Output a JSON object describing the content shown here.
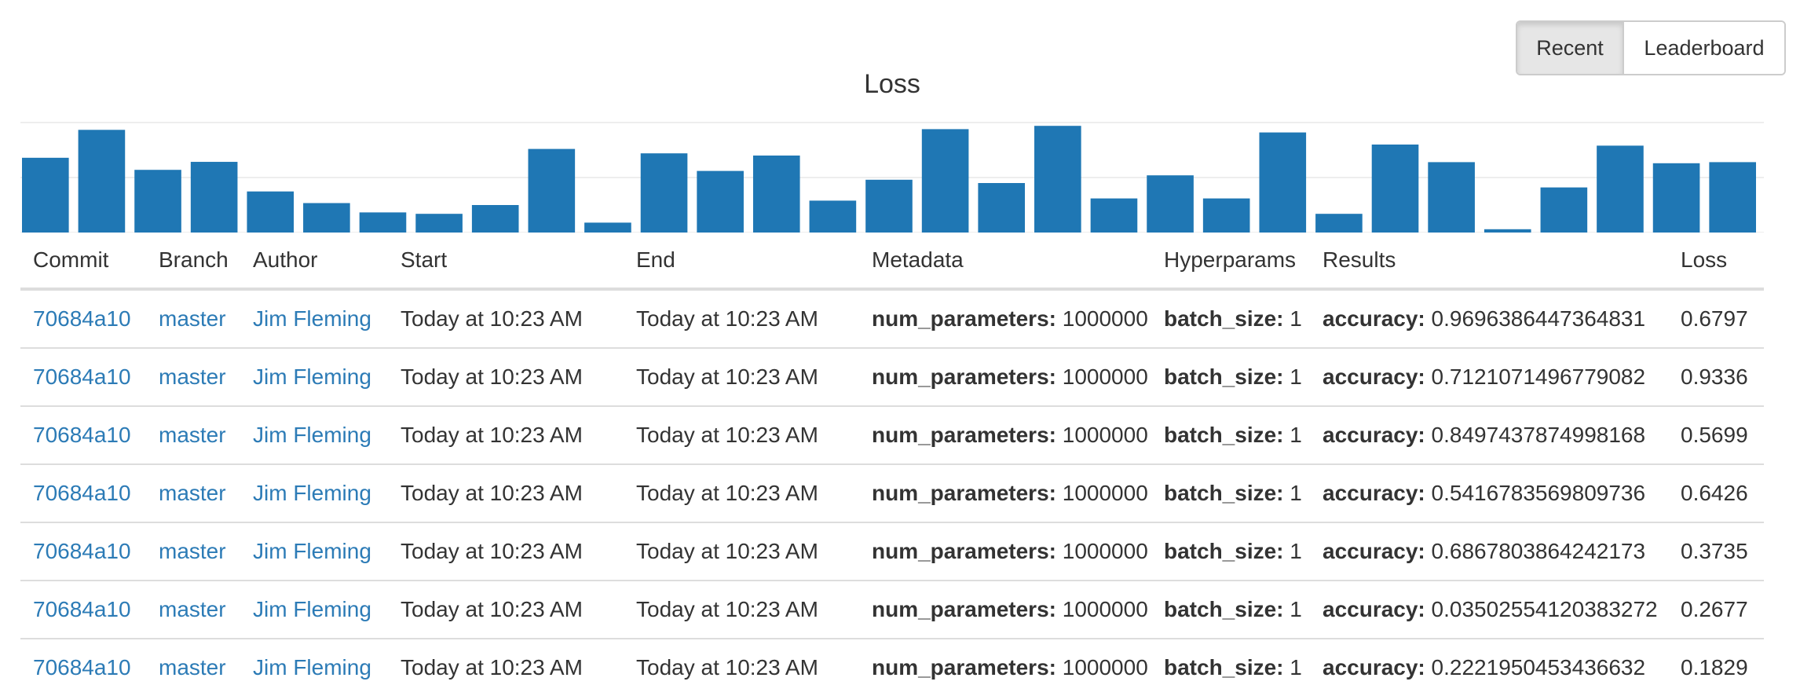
{
  "view_toggle": {
    "recent_label": "Recent",
    "leaderboard_label": "Leaderboard",
    "active": "Recent"
  },
  "chart_data": {
    "type": "bar",
    "title": "Loss",
    "color": "#1f77b4",
    "values": [
      0.6797,
      0.9336,
      0.5699,
      0.6426,
      0.3735,
      0.2677,
      0.1829,
      0.17,
      0.25,
      0.76,
      0.09,
      0.72,
      0.56,
      0.7,
      0.29,
      0.48,
      0.94,
      0.45,
      0.97,
      0.31,
      0.52,
      0.31,
      0.91,
      0.17,
      0.8,
      0.64,
      0.03,
      0.41,
      0.79,
      0.63,
      0.64
    ],
    "grid": true,
    "grid_step": 0.5,
    "ylim": [
      0,
      1
    ]
  },
  "table": {
    "columns": [
      "Commit",
      "Branch",
      "Author",
      "Start",
      "End",
      "Metadata",
      "Hyperparams",
      "Results",
      "Loss"
    ],
    "rows": [
      {
        "commit": "70684a10",
        "branch": "master",
        "author": "Jim Fleming",
        "start": "Today at 10:23 AM",
        "end": "Today at 10:23 AM",
        "meta_key": "num_parameters:",
        "meta_val": "1000000",
        "hp_key": "batch_size:",
        "hp_val": "1",
        "res_key": "accuracy:",
        "res_val": "0.9696386447364831",
        "loss": "0.6797"
      },
      {
        "commit": "70684a10",
        "branch": "master",
        "author": "Jim Fleming",
        "start": "Today at 10:23 AM",
        "end": "Today at 10:23 AM",
        "meta_key": "num_parameters:",
        "meta_val": "1000000",
        "hp_key": "batch_size:",
        "hp_val": "1",
        "res_key": "accuracy:",
        "res_val": "0.7121071496779082",
        "loss": "0.9336"
      },
      {
        "commit": "70684a10",
        "branch": "master",
        "author": "Jim Fleming",
        "start": "Today at 10:23 AM",
        "end": "Today at 10:23 AM",
        "meta_key": "num_parameters:",
        "meta_val": "1000000",
        "hp_key": "batch_size:",
        "hp_val": "1",
        "res_key": "accuracy:",
        "res_val": "0.8497437874998168",
        "loss": "0.5699"
      },
      {
        "commit": "70684a10",
        "branch": "master",
        "author": "Jim Fleming",
        "start": "Today at 10:23 AM",
        "end": "Today at 10:23 AM",
        "meta_key": "num_parameters:",
        "meta_val": "1000000",
        "hp_key": "batch_size:",
        "hp_val": "1",
        "res_key": "accuracy:",
        "res_val": "0.5416783569809736",
        "loss": "0.6426"
      },
      {
        "commit": "70684a10",
        "branch": "master",
        "author": "Jim Fleming",
        "start": "Today at 10:23 AM",
        "end": "Today at 10:23 AM",
        "meta_key": "num_parameters:",
        "meta_val": "1000000",
        "hp_key": "batch_size:",
        "hp_val": "1",
        "res_key": "accuracy:",
        "res_val": "0.6867803864242173",
        "loss": "0.3735"
      },
      {
        "commit": "70684a10",
        "branch": "master",
        "author": "Jim Fleming",
        "start": "Today at 10:23 AM",
        "end": "Today at 10:23 AM",
        "meta_key": "num_parameters:",
        "meta_val": "1000000",
        "hp_key": "batch_size:",
        "hp_val": "1",
        "res_key": "accuracy:",
        "res_val": "0.03502554120383272",
        "loss": "0.2677"
      },
      {
        "commit": "70684a10",
        "branch": "master",
        "author": "Jim Fleming",
        "start": "Today at 10:23 AM",
        "end": "Today at 10:23 AM",
        "meta_key": "num_parameters:",
        "meta_val": "1000000",
        "hp_key": "batch_size:",
        "hp_val": "1",
        "res_key": "accuracy:",
        "res_val": "0.2221950453436632",
        "loss": "0.1829"
      }
    ]
  }
}
